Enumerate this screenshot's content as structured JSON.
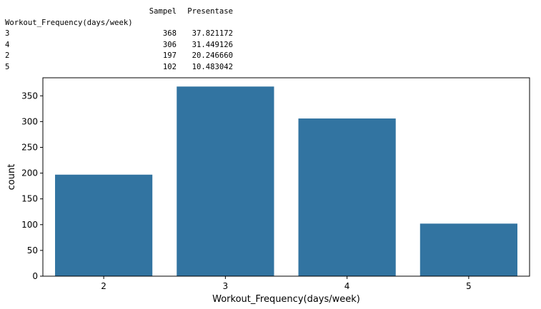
{
  "dataframe": {
    "columns": [
      "Sampel",
      "Presentase"
    ],
    "index_name": "Workout_Frequency(days/week)",
    "rows": [
      {
        "index": "3",
        "sampel": "368",
        "presentase": "37.821172"
      },
      {
        "index": "4",
        "sampel": "306",
        "presentase": "31.449126"
      },
      {
        "index": "2",
        "sampel": "197",
        "presentase": "20.246660"
      },
      {
        "index": "5",
        "sampel": "102",
        "presentase": "10.483042"
      }
    ]
  },
  "chart_data": {
    "type": "bar",
    "categories": [
      "2",
      "3",
      "4",
      "5"
    ],
    "values": [
      197,
      368,
      306,
      102
    ],
    "xlabel": "Workout_Frequency(days/week)",
    "ylabel": "count",
    "ylim": [
      0,
      385
    ],
    "yticks": [
      0,
      50,
      100,
      150,
      200,
      250,
      300,
      350
    ],
    "bar_color": "#3274a1",
    "grid": false
  }
}
